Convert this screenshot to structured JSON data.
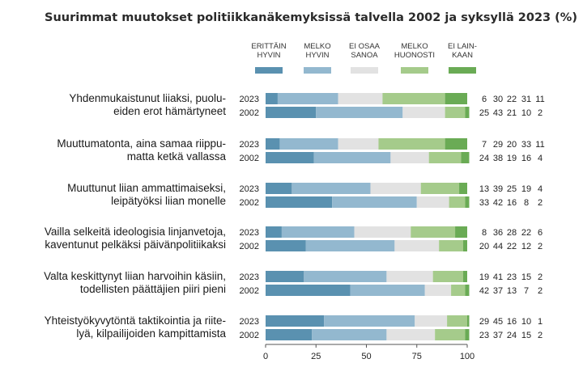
{
  "chart_data": {
    "type": "bar",
    "orientation": "horizontal",
    "stacked": true,
    "title": "Suurimmat muutokset politiikkanäkemyksissä talvella 2002 ja syksyllä 2023 (%)",
    "legend_position": "top",
    "xlim": [
      0,
      100
    ],
    "xticks": [
      "0",
      "25",
      "50",
      "75",
      "100"
    ],
    "legend": [
      {
        "lines": [
          "ERITTÄIN",
          "HYVIN"
        ],
        "color": "#5a91b0"
      },
      {
        "lines": [
          "MELKO",
          "HYVIN"
        ],
        "color": "#93b8cf"
      },
      {
        "lines": [
          "EI OSAA",
          "SANOA"
        ],
        "color": "#e2e2e2"
      },
      {
        "lines": [
          "MELKO",
          "HUONOSTI"
        ],
        "color": "#a5cb8b"
      },
      {
        "lines": [
          "EI LAIN-",
          "KAAN"
        ],
        "color": "#6aab55"
      }
    ],
    "categories": [
      {
        "label": [
          "Yhdenmukaistunut liiaksi, puolu-",
          "eiden erot hämärtyneet"
        ],
        "rows": [
          {
            "year": "2023",
            "values": [
              6,
              30,
              22,
              31,
              11
            ]
          },
          {
            "year": "2002",
            "values": [
              25,
              43,
              21,
              10,
              2
            ]
          }
        ]
      },
      {
        "label": [
          "Muuttumatonta, aina samaa riippu-",
          "matta ketkä vallassa"
        ],
        "rows": [
          {
            "year": "2023",
            "values": [
              7,
              29,
              20,
              33,
              11
            ]
          },
          {
            "year": "2002",
            "values": [
              24,
              38,
              19,
              16,
              4
            ]
          }
        ]
      },
      {
        "label": [
          "Muuttunut liian ammattimaiseksi,",
          "leipätyöksi liian monelle"
        ],
        "rows": [
          {
            "year": "2023",
            "values": [
              13,
              39,
              25,
              19,
              4
            ]
          },
          {
            "year": "2002",
            "values": [
              33,
              42,
              16,
              8,
              2
            ]
          }
        ]
      },
      {
        "label": [
          "Vailla selkeitä ideologisia linjanvetoja,",
          "kaventunut pelkäksi päivänpolitiikaksi"
        ],
        "rows": [
          {
            "year": "2023",
            "values": [
              8,
              36,
              28,
              22,
              6
            ]
          },
          {
            "year": "2002",
            "values": [
              20,
              44,
              22,
              12,
              2
            ]
          }
        ]
      },
      {
        "label": [
          "Valta keskittynyt liian harvoihin käsiin,",
          "todellisten päättäjien piiri pieni"
        ],
        "rows": [
          {
            "year": "2023",
            "values": [
              19,
              41,
              23,
              15,
              2
            ]
          },
          {
            "year": "2002",
            "values": [
              42,
              37,
              13,
              7,
              2
            ]
          }
        ]
      },
      {
        "label": [
          "Yhteistyökyvytöntä taktikointia ja riite-",
          "lyä, kilpailijoiden kampittamista"
        ],
        "rows": [
          {
            "year": "2023",
            "values": [
              29,
              45,
              16,
              10,
              1
            ]
          },
          {
            "year": "2002",
            "values": [
              23,
              37,
              24,
              15,
              2
            ]
          }
        ]
      }
    ]
  }
}
